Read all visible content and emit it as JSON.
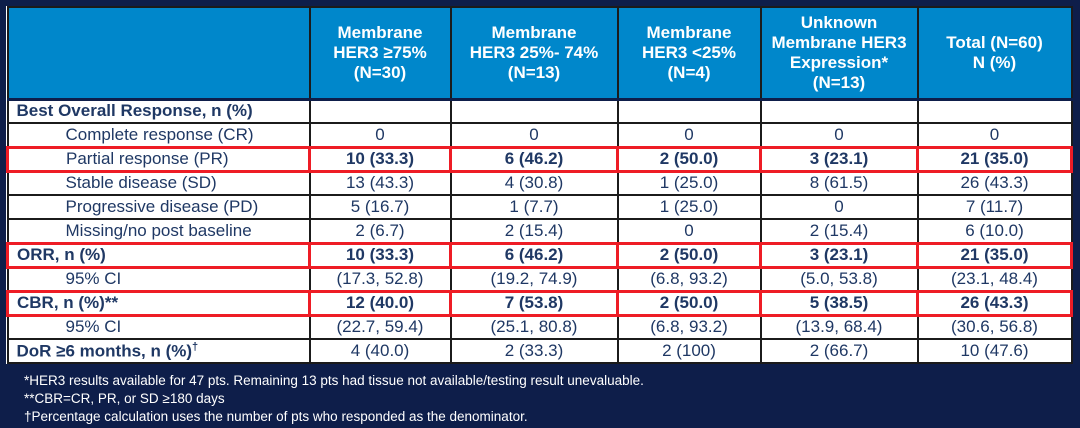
{
  "colors": {
    "frame_bg": "#0e1e4a",
    "header_bg": "#0087cb",
    "header_text": "#ffffff",
    "body_text": "#1f3864",
    "grid": "#1b1b1b",
    "highlight_red": "#ee1c25",
    "cell_bg": "#ffffff"
  },
  "table": {
    "columns": [
      {
        "id": "row-label",
        "lines": []
      },
      {
        "id": "membrane-her3-ge75",
        "lines": [
          "Membrane",
          "HER3 ≥75%",
          "(N=30)"
        ]
      },
      {
        "id": "membrane-her3-25-74",
        "lines": [
          "Membrane",
          "HER3 25%- 74%",
          "(N=13)"
        ]
      },
      {
        "id": "membrane-her3-lt25",
        "lines": [
          "Membrane",
          "HER3 <25%",
          "(N=4)"
        ]
      },
      {
        "id": "unknown-membrane-her3",
        "lines": [
          "Unknown",
          "Membrane HER3",
          "Expression*",
          "(N=13)"
        ]
      },
      {
        "id": "total",
        "lines": [
          "Total (N=60)",
          "N (%)"
        ]
      }
    ],
    "rows": [
      {
        "label": "Best Overall Response, n (%)",
        "style": "section",
        "highlight": false,
        "values": [
          "",
          "",
          "",
          "",
          ""
        ]
      },
      {
        "label": "Complete response (CR)",
        "style": "indent",
        "highlight": false,
        "values": [
          "0",
          "0",
          "0",
          "0",
          "0"
        ]
      },
      {
        "label": "Partial response (PR)",
        "style": "indent",
        "highlight": true,
        "values": [
          "10 (33.3)",
          "6 (46.2)",
          "2 (50.0)",
          "3 (23.1)",
          "21 (35.0)"
        ]
      },
      {
        "label": "Stable disease (SD)",
        "style": "indent",
        "highlight": false,
        "values": [
          "13 (43.3)",
          "4 (30.8)",
          "1 (25.0)",
          "8 (61.5)",
          "26 (43.3)"
        ]
      },
      {
        "label": "Progressive disease (PD)",
        "style": "indent",
        "highlight": false,
        "values": [
          "5 (16.7)",
          "1 (7.7)",
          "1 (25.0)",
          "0",
          "7 (11.7)"
        ]
      },
      {
        "label": "Missing/no post baseline",
        "style": "indent",
        "highlight": false,
        "values": [
          "2 (6.7)",
          "2 (15.4)",
          "0",
          "2 (15.4)",
          "6 (10.0)"
        ]
      },
      {
        "label": "ORR, n (%)",
        "style": "section",
        "highlight": true,
        "values": [
          "10 (33.3)",
          "6 (46.2)",
          "2 (50.0)",
          "3 (23.1)",
          "21 (35.0)"
        ]
      },
      {
        "label": "95% CI",
        "style": "indent",
        "highlight": false,
        "values": [
          "(17.3, 52.8)",
          "(19.2, 74.9)",
          "(6.8, 93.2)",
          "(5.0, 53.8)",
          "(23.1, 48.4)"
        ]
      },
      {
        "label": "CBR, n (%)**",
        "style": "section",
        "highlight": true,
        "values": [
          "12 (40.0)",
          "7 (53.8)",
          "2 (50.0)",
          "5 (38.5)",
          "26 (43.3)"
        ]
      },
      {
        "label": "95% CI",
        "style": "indent",
        "highlight": false,
        "values": [
          "(22.7, 59.4)",
          "(25.1, 80.8)",
          "(6.8, 93.2)",
          "(13.9, 68.4)",
          "(30.6, 56.8)"
        ]
      },
      {
        "label": "DoR ≥6 months, n (%)",
        "label_sup": "†",
        "style": "section",
        "highlight": false,
        "values": [
          "4 (40.0)",
          "2 (33.3)",
          "2 (100)",
          "2 (66.7)",
          "10 (47.6)"
        ]
      }
    ]
  },
  "footnotes": [
    "*HER3 results available for 47 pts. Remaining 13 pts had tissue not available/testing result unevaluable.",
    "**CBR=CR, PR, or SD ≥180 days",
    "†Percentage calculation uses the number of pts who responded as the denominator."
  ]
}
